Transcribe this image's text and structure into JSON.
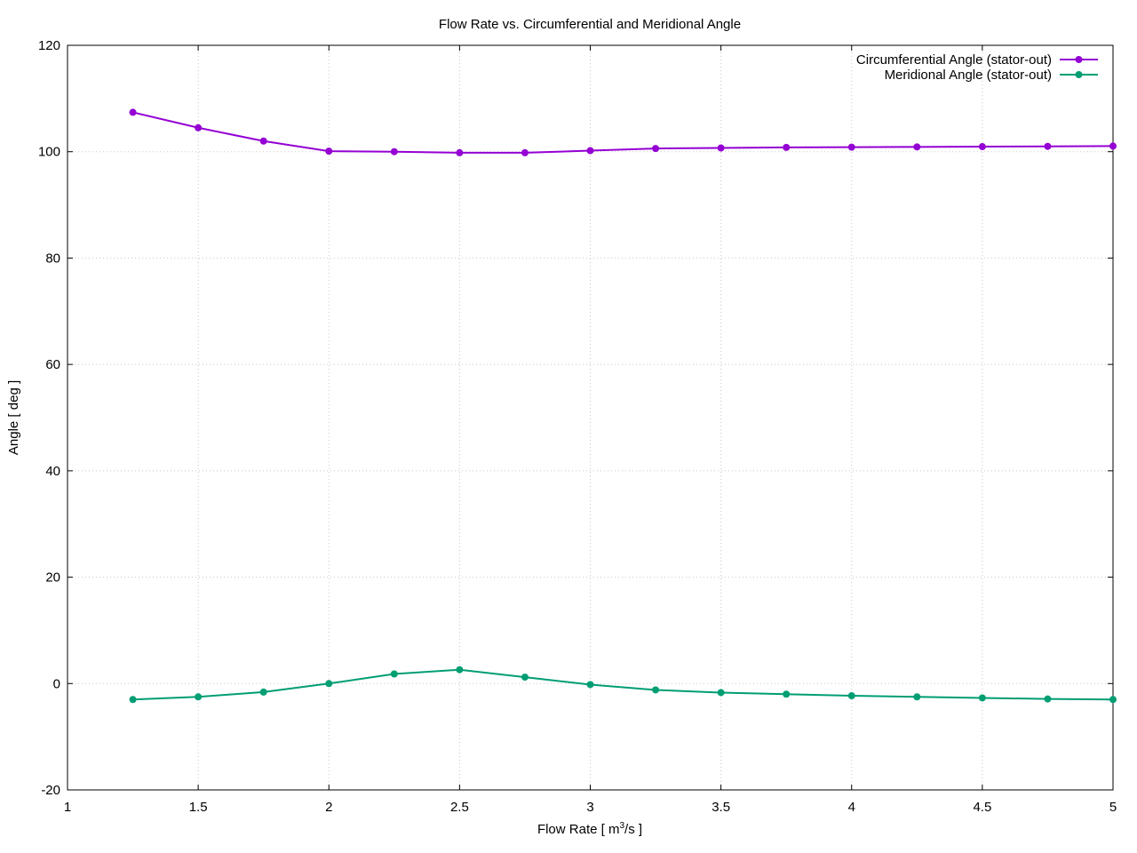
{
  "chart_data": {
    "type": "line",
    "title": "Flow Rate vs. Circumferential and Meridional Angle",
    "xlabel_main": "Flow Rate [ m",
    "xlabel_sup": "3",
    "xlabel_end": "/s ]",
    "ylabel": "Angle [ deg ]",
    "xlim": [
      1,
      5
    ],
    "ylim": [
      -20,
      120
    ],
    "xticks": [
      1,
      1.5,
      2,
      2.5,
      3,
      3.5,
      4,
      4.5,
      5
    ],
    "xtick_labels": [
      "1",
      "1.5",
      "2",
      "2.5",
      "3",
      "3.5",
      "4",
      "4.5",
      "5"
    ],
    "yticks": [
      -20,
      0,
      20,
      40,
      60,
      80,
      100,
      120
    ],
    "ytick_labels": [
      "-20",
      "0",
      "20",
      "40",
      "60",
      "80",
      "100",
      "120"
    ],
    "grid": true,
    "legend_position": "top-right",
    "x": [
      1.25,
      1.5,
      1.75,
      2,
      2.25,
      2.5,
      2.75,
      3,
      3.25,
      3.5,
      3.75,
      4,
      4.25,
      4.5,
      4.75,
      5
    ],
    "series": [
      {
        "name": "Circumferential Angle (stator-out)",
        "color": "#9400d3",
        "values": [
          107.4,
          104.5,
          102.0,
          100.1,
          100.0,
          99.8,
          99.8,
          100.2,
          100.6,
          100.7,
          100.8,
          100.85,
          100.9,
          100.95,
          101.0,
          101.05
        ]
      },
      {
        "name": "Meridional Angle (stator-out)",
        "color": "#009e73",
        "values": [
          -3.0,
          -2.5,
          -1.6,
          0.0,
          1.8,
          2.6,
          1.2,
          -0.2,
          -1.2,
          -1.7,
          -2.0,
          -2.3,
          -2.5,
          -2.7,
          -2.9,
          -3.0
        ]
      }
    ]
  }
}
